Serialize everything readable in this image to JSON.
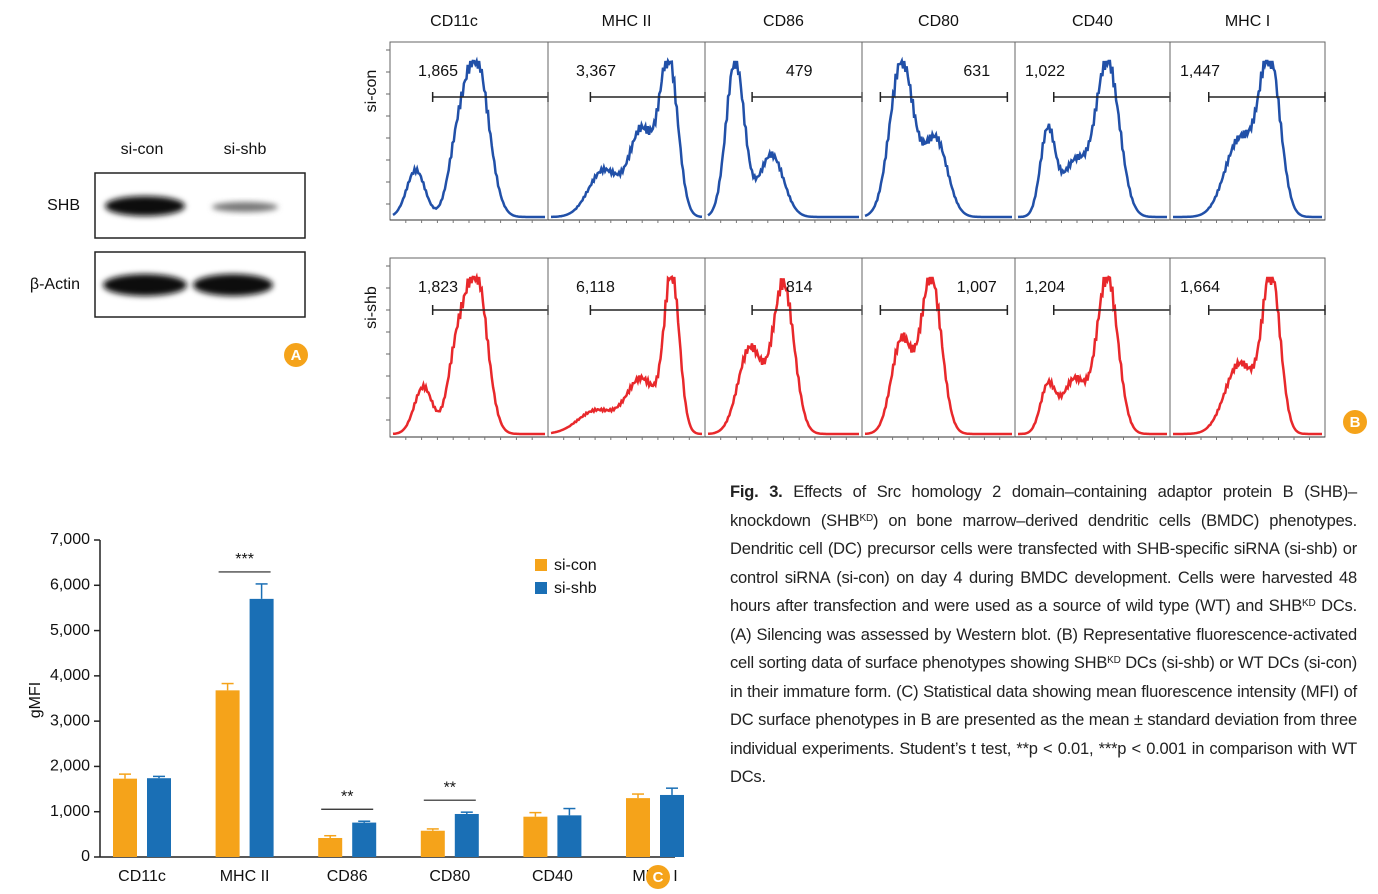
{
  "panel_a": {
    "lanes": [
      "si-con",
      "si-shb"
    ],
    "rows": [
      "SHB",
      "β-Actin"
    ],
    "badge": "A"
  },
  "panel_b": {
    "columns": [
      "CD11c",
      "MHC II",
      "CD86",
      "CD80",
      "CD40",
      "MHC I"
    ],
    "rows": [
      {
        "label": "si-con",
        "values": [
          "1,865",
          "3,367",
          "479",
          "631",
          "1,022",
          "1,447"
        ]
      },
      {
        "label": "si-shb",
        "values": [
          "1,823",
          "6,118",
          "814",
          "1,007",
          "1,204",
          "1,664"
        ]
      }
    ],
    "badge": "B"
  },
  "chart_data": {
    "type": "bar",
    "y_label": "gMFI",
    "categories": [
      "CD11c",
      "MHC II",
      "CD86",
      "CD80",
      "CD40",
      "MHC I"
    ],
    "series": [
      {
        "name": "si-con",
        "color": "#f5a31a",
        "values": [
          1730,
          3680,
          420,
          580,
          890,
          1300
        ],
        "errors": [
          100,
          150,
          50,
          40,
          90,
          90
        ]
      },
      {
        "name": "si-shb",
        "color": "#1a6fb5",
        "values": [
          1740,
          5700,
          760,
          950,
          920,
          1370
        ],
        "errors": [
          40,
          330,
          30,
          40,
          150,
          150
        ]
      }
    ],
    "ylim": [
      0,
      7000
    ],
    "yticks": [
      0,
      {
        "value": 1000,
        "label": "1,000"
      },
      {
        "value": 2000,
        "label": "2,000"
      },
      {
        "value": 3000,
        "label": "3,000"
      },
      {
        "value": 4000,
        "label": "4,000"
      },
      {
        "value": 5000,
        "label": "5,000"
      },
      {
        "value": 6000,
        "label": "6,000"
      },
      {
        "value": 7000,
        "label": "7,000"
      }
    ],
    "annotations": [
      {
        "text": "***",
        "category": 1
      },
      {
        "text": "**",
        "category": 2
      },
      {
        "text": "**",
        "category": 3
      }
    ],
    "legend": "top-right",
    "badge": "C"
  },
  "caption": {
    "label": "Fig. 3.",
    "parts": [
      " Effects of Src homology 2 domain–containing adaptor protein B (SHB)–knockdown (SHB",
      "KD",
      ") on bone marrow–derived dendritic cells (BMDC) phenotypes. Dendritic cell (DC) precursor cells were transfected with SHB-specific siRNA (si-shb) or control siRNA (si-con) on day 4 during BMDC development. Cells were harvested 48 hours after transfection and were used as a source of wild type (WT) and SHB",
      "KD",
      " DCs. (A) Silencing was assessed by Western blot. (B) Representative fluorescence-activated cell sorting data of surface phenotypes showing SHB",
      "KD",
      " DCs (si-shb) or WT DCs (si-con) in their immature form. (C) Statistical data showing mean fluorescence intensity (MFI) of DC surface phenotypes in B are presented as the mean ± standard deviation from three individual experiments. Student’s t test, **p < 0.01, ***p < 0.001 in comparison with WT DCs."
    ]
  }
}
